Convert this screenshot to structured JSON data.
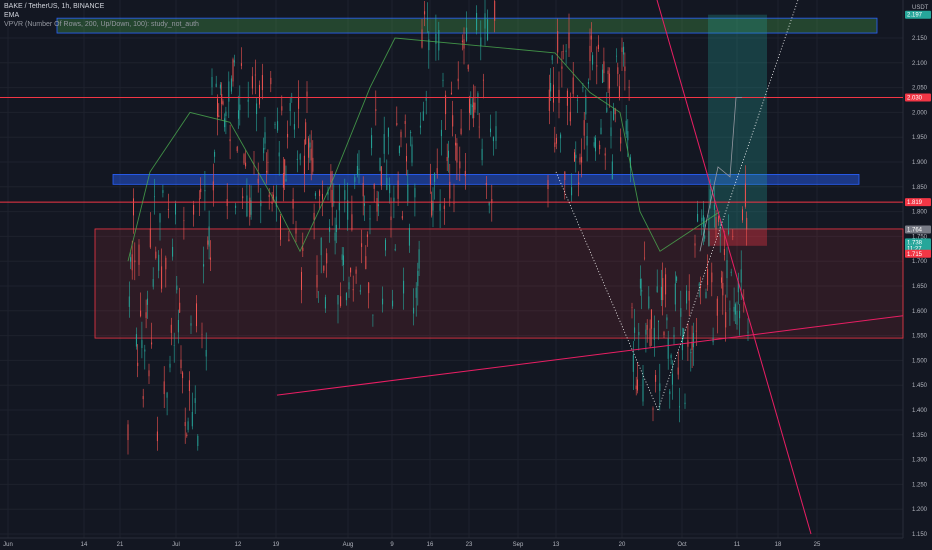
{
  "legend": {
    "symbol_line": "BAKE / TetherUS, 1h, BINANCE",
    "ema_label": "EMA",
    "vpvr_line": "VPVR (Number Of Rows, 200, Up/Down, 100): study_not_auth"
  },
  "currency": "USDT",
  "colors": {
    "background": "#131722",
    "up": "#26a69a",
    "down": "#ef5350",
    "ema": "#4caf50",
    "hline": "#f23645",
    "trendline": "#e91e63",
    "blue_zone": "#2962ff",
    "red_zone": "#f23645",
    "target_zone": "#26a69a",
    "projection": "#d1d4dc"
  },
  "chart_data": {
    "type": "candlestick",
    "y_ticks": [
      "2.150",
      "2.100",
      "2.050",
      "2.000",
      "1.950",
      "1.900",
      "1.850",
      "1.800",
      "1.750",
      "1.700",
      "1.650",
      "1.600",
      "1.550",
      "1.500",
      "1.450",
      "1.400",
      "1.350",
      "1.300",
      "1.250",
      "1.200",
      "1.150"
    ],
    "x_ticks": [
      "Jun",
      "14",
      "21",
      "Jul",
      "12",
      "19",
      "Aug",
      "9",
      "16",
      "23",
      "Sep",
      "13",
      "20",
      "Oct",
      "11",
      "18",
      "25"
    ],
    "price_badges": [
      {
        "text": "2.197",
        "color": "#26a69a",
        "price": 2.197
      },
      {
        "text": "2.030",
        "color": "#f23645",
        "price": 2.03
      },
      {
        "text": "1.819",
        "color": "#f23645",
        "price": 1.819
      },
      {
        "text": "1.764",
        "color": "#787b86",
        "price": 1.764
      },
      {
        "text": "1.738",
        "color": "#26a69a",
        "price": 1.738
      },
      {
        "text": "11:27",
        "color": "#26a69a",
        "price": 1.726
      },
      {
        "text": "1.715",
        "color": "#f23645",
        "price": 1.715
      }
    ],
    "ylim": [
      1.15,
      2.2
    ],
    "segments": [
      {
        "x0": 0,
        "x1": 20,
        "base": 1.6,
        "amp": 0.25
      },
      {
        "x0": 20,
        "x1": 35,
        "base": 1.95,
        "amp": 0.15
      },
      {
        "x0": 35,
        "x1": 45,
        "base": 1.85,
        "amp": 0.2
      },
      {
        "x0": 45,
        "x1": 58,
        "base": 1.75,
        "amp": 0.15
      },
      {
        "x0": 58,
        "x1": 70,
        "base": 1.8,
        "amp": 0.2
      },
      {
        "x0": 70,
        "x1": 88,
        "base": 2.0,
        "amp": 0.2
      },
      {
        "x0": 100,
        "x1": 120,
        "base": 2.0,
        "amp": 0.15
      },
      {
        "x0": 120,
        "x1": 135,
        "base": 1.55,
        "amp": 0.15
      },
      {
        "x0": 135,
        "x1": 148,
        "base": 1.7,
        "amp": 0.15
      }
    ]
  }
}
